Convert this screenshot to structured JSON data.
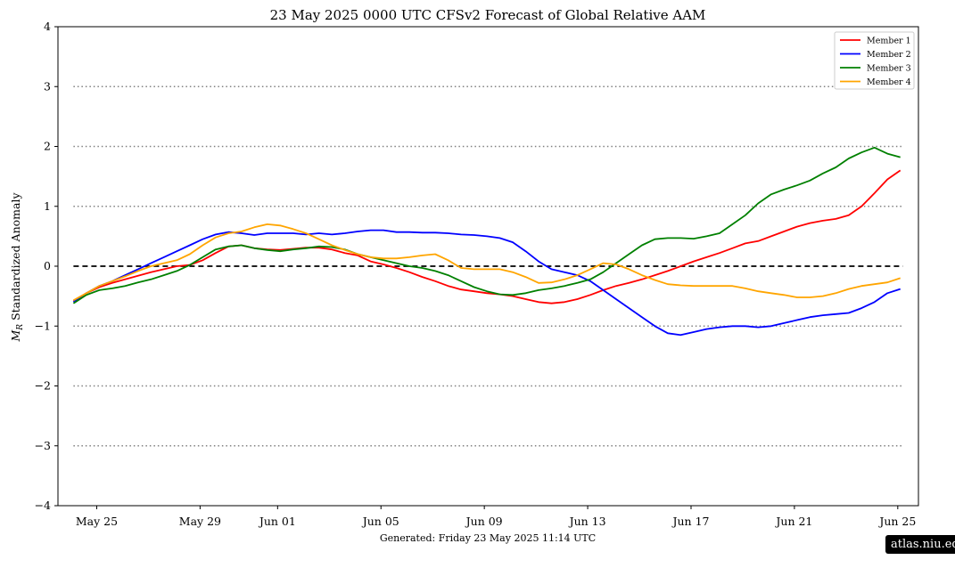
{
  "chart_data": {
    "type": "line",
    "title": "23  May  2025 0000 UTC   CFSv2 Forecast of Global Relative AAM",
    "ylabel_math": "M",
    "ylabel_sub": "R",
    "ylabel_rest": " Standardized Anomaly",
    "xlabel": "",
    "ylim": [
      -4,
      4
    ],
    "yticks": [
      -4,
      -3,
      -2,
      -1,
      0,
      1,
      2,
      3,
      4
    ],
    "ytick_labels": [
      "−4",
      "−3",
      "−2",
      "−1",
      "0",
      "1",
      "2",
      "3",
      "4"
    ],
    "xlim": [
      -0.6,
      32.7
    ],
    "xticks": [
      {
        "day": 2,
        "label": "May 25"
      },
      {
        "day": 6,
        "label": "May 29"
      },
      {
        "day": 9,
        "label": "Jun 01"
      },
      {
        "day": 13,
        "label": "Jun 05"
      },
      {
        "day": 17,
        "label": "Jun 09"
      },
      {
        "day": 21,
        "label": "Jun 13"
      },
      {
        "day": 25,
        "label": "Jun 17"
      },
      {
        "day": 29,
        "label": "Jun 21"
      },
      {
        "day": 33,
        "label": "Jun 25"
      }
    ],
    "grid_lines_dotted": [
      -3,
      -2,
      -1,
      1,
      2,
      3
    ],
    "zero_line_dashed": 0,
    "legend_position": "top-right",
    "x_day_offset_start": 1.1,
    "series": [
      {
        "name": "Member 1",
        "color": "#ff0000",
        "x": [
          0.0,
          0.5,
          1.0,
          1.5,
          2.0,
          2.5,
          3.0,
          3.5,
          4.0,
          4.5,
          5.0,
          5.5,
          6.0,
          6.5,
          7.0,
          7.5,
          8.0,
          8.5,
          9.0,
          9.5,
          10.0,
          10.5,
          11.0,
          11.5,
          12.0,
          12.5,
          13.0,
          13.5,
          14.0,
          14.5,
          15.0,
          15.5,
          16.0,
          16.5,
          17.0,
          17.5,
          18.0,
          18.5,
          19.0,
          19.5,
          20.0,
          20.5,
          21.0,
          21.5,
          22.0,
          22.5,
          23.0,
          23.5,
          24.0,
          24.5,
          25.0,
          25.5,
          26.0,
          26.5,
          27.0,
          27.5,
          28.0,
          28.5,
          29.0,
          29.5,
          30.0,
          30.5,
          31.0,
          31.5,
          32.0
        ],
        "y": [
          -0.58,
          -0.45,
          -0.35,
          -0.28,
          -0.22,
          -0.16,
          -0.1,
          -0.05,
          0.0,
          0.02,
          0.1,
          0.22,
          0.33,
          0.35,
          0.3,
          0.28,
          0.27,
          0.29,
          0.31,
          0.31,
          0.28,
          0.22,
          0.18,
          0.08,
          0.03,
          -0.03,
          -0.1,
          -0.18,
          -0.25,
          -0.33,
          -0.39,
          -0.42,
          -0.45,
          -0.47,
          -0.5,
          -0.55,
          -0.6,
          -0.62,
          -0.6,
          -0.55,
          -0.48,
          -0.4,
          -0.33,
          -0.28,
          -0.22,
          -0.15,
          -0.08,
          0.0,
          0.08,
          0.15,
          0.22,
          0.3,
          0.38,
          0.42,
          0.5,
          0.58,
          0.66,
          0.72,
          0.76,
          0.79,
          0.85,
          1.0,
          1.22,
          1.45,
          1.6
        ]
      },
      {
        "name": "Member 2",
        "color": "#0000ff",
        "x": [
          0.0,
          0.5,
          1.0,
          1.5,
          2.0,
          2.5,
          3.0,
          3.5,
          4.0,
          4.5,
          5.0,
          5.5,
          6.0,
          6.5,
          7.0,
          7.5,
          8.0,
          8.5,
          9.0,
          9.5,
          10.0,
          10.5,
          11.0,
          11.5,
          12.0,
          12.5,
          13.0,
          13.5,
          14.0,
          14.5,
          15.0,
          15.5,
          16.0,
          16.5,
          17.0,
          17.5,
          18.0,
          18.5,
          19.0,
          19.5,
          20.0,
          20.5,
          21.0,
          21.5,
          22.0,
          22.5,
          23.0,
          23.5,
          24.0,
          24.5,
          25.0,
          25.5,
          26.0,
          26.5,
          27.0,
          27.5,
          28.0,
          28.5,
          29.0,
          29.5,
          30.0,
          30.5,
          31.0,
          31.5,
          32.0
        ],
        "y": [
          -0.6,
          -0.45,
          -0.33,
          -0.25,
          -0.15,
          -0.05,
          0.05,
          0.15,
          0.25,
          0.35,
          0.45,
          0.53,
          0.57,
          0.55,
          0.52,
          0.55,
          0.55,
          0.55,
          0.53,
          0.55,
          0.53,
          0.55,
          0.58,
          0.6,
          0.6,
          0.57,
          0.57,
          0.56,
          0.56,
          0.55,
          0.53,
          0.52,
          0.5,
          0.47,
          0.4,
          0.25,
          0.08,
          -0.05,
          -0.1,
          -0.15,
          -0.25,
          -0.4,
          -0.55,
          -0.7,
          -0.85,
          -1.0,
          -1.12,
          -1.15,
          -1.1,
          -1.05,
          -1.02,
          -1.0,
          -1.0,
          -1.02,
          -1.0,
          -0.95,
          -0.9,
          -0.85,
          -0.82,
          -0.8,
          -0.78,
          -0.7,
          -0.6,
          -0.45,
          -0.38
        ]
      },
      {
        "name": "Member 3",
        "color": "#008000",
        "x": [
          0.0,
          0.5,
          1.0,
          1.5,
          2.0,
          2.5,
          3.0,
          3.5,
          4.0,
          4.5,
          5.0,
          5.5,
          6.0,
          6.5,
          7.0,
          7.5,
          8.0,
          8.5,
          9.0,
          9.5,
          10.0,
          10.5,
          11.0,
          11.5,
          12.0,
          12.5,
          13.0,
          13.5,
          14.0,
          14.5,
          15.0,
          15.5,
          16.0,
          16.5,
          17.0,
          17.5,
          18.0,
          18.5,
          19.0,
          19.5,
          20.0,
          20.5,
          21.0,
          21.5,
          22.0,
          22.5,
          23.0,
          23.5,
          24.0,
          24.5,
          25.0,
          25.5,
          26.0,
          26.5,
          27.0,
          27.5,
          28.0,
          28.5,
          29.0,
          29.5,
          30.0,
          30.5,
          31.0,
          31.5,
          32.0
        ],
        "y": [
          -0.62,
          -0.48,
          -0.4,
          -0.37,
          -0.33,
          -0.27,
          -0.22,
          -0.15,
          -0.08,
          0.02,
          0.15,
          0.28,
          0.33,
          0.35,
          0.3,
          0.27,
          0.25,
          0.28,
          0.3,
          0.33,
          0.32,
          0.28,
          0.2,
          0.15,
          0.1,
          0.05,
          0.0,
          -0.03,
          -0.08,
          -0.15,
          -0.25,
          -0.35,
          -0.42,
          -0.47,
          -0.48,
          -0.45,
          -0.4,
          -0.37,
          -0.33,
          -0.28,
          -0.22,
          -0.1,
          0.05,
          0.2,
          0.35,
          0.45,
          0.47,
          0.47,
          0.46,
          0.5,
          0.55,
          0.7,
          0.85,
          1.05,
          1.2,
          1.28,
          1.35,
          1.43,
          1.55,
          1.65,
          1.8,
          1.9,
          1.98,
          1.88,
          1.82
        ]
      },
      {
        "name": "Member 4",
        "color": "#ffa500",
        "x": [
          0.0,
          0.5,
          1.0,
          1.5,
          2.0,
          2.5,
          3.0,
          3.5,
          4.0,
          4.5,
          5.0,
          5.5,
          6.0,
          6.5,
          7.0,
          7.5,
          8.0,
          8.5,
          9.0,
          9.5,
          10.0,
          10.5,
          11.0,
          11.5,
          12.0,
          12.5,
          13.0,
          13.5,
          14.0,
          14.5,
          15.0,
          15.5,
          16.0,
          16.5,
          17.0,
          17.5,
          18.0,
          18.5,
          19.0,
          19.5,
          20.0,
          20.5,
          21.0,
          21.5,
          22.0,
          22.5,
          23.0,
          23.5,
          24.0,
          24.5,
          25.0,
          25.5,
          26.0,
          26.5,
          27.0,
          27.5,
          28.0,
          28.5,
          29.0,
          29.5,
          30.0,
          30.5,
          31.0,
          31.5,
          32.0
        ],
        "y": [
          -0.57,
          -0.45,
          -0.33,
          -0.25,
          -0.17,
          -0.08,
          0.0,
          0.05,
          0.1,
          0.2,
          0.35,
          0.48,
          0.55,
          0.58,
          0.65,
          0.7,
          0.68,
          0.62,
          0.55,
          0.45,
          0.35,
          0.27,
          0.2,
          0.15,
          0.13,
          0.13,
          0.15,
          0.18,
          0.2,
          0.1,
          -0.03,
          -0.05,
          -0.05,
          -0.05,
          -0.1,
          -0.18,
          -0.28,
          -0.27,
          -0.22,
          -0.15,
          -0.05,
          0.05,
          0.03,
          -0.05,
          -0.15,
          -0.23,
          -0.3,
          -0.32,
          -0.33,
          -0.33,
          -0.33,
          -0.33,
          -0.37,
          -0.42,
          -0.45,
          -0.48,
          -0.52,
          -0.52,
          -0.5,
          -0.45,
          -0.38,
          -0.33,
          -0.3,
          -0.27,
          -0.2
        ]
      }
    ]
  },
  "footer": "Generated: Friday  23  May  2025  11:14 UTC",
  "watermark": "atlas.niu.edu"
}
